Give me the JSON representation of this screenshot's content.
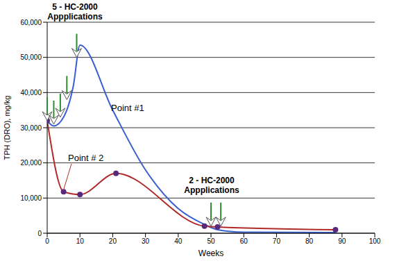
{
  "chart_data": {
    "type": "line",
    "x_label": "Weeks",
    "y_label": "TPH (DRO), mg/kg",
    "xlim": [
      0,
      100
    ],
    "xticks": [
      0,
      10,
      20,
      30,
      40,
      50,
      60,
      70,
      80,
      90,
      100
    ],
    "ylim": [
      0,
      60000
    ],
    "yticks": [
      0,
      {
        "value": 10000,
        "label": "10,000"
      },
      {
        "value": 20000,
        "label": "20,000"
      },
      {
        "value": 30000,
        "label": "30,000"
      },
      {
        "value": 40000,
        "label": "40,000"
      },
      {
        "value": 50000,
        "label": "50,000"
      },
      {
        "value": 60000,
        "label": "60,000"
      }
    ],
    "grid": true,
    "series": [
      {
        "name": "Point #1",
        "color": "#3a5fd0",
        "marker": "none",
        "line_style": "solid",
        "x": [
          0,
          2,
          5,
          8,
          10,
          20,
          30,
          40,
          48,
          52,
          60,
          88
        ],
        "values": [
          32000,
          30500,
          33000,
          42000,
          53500,
          35000,
          18000,
          7000,
          2500,
          1000,
          300,
          200
        ]
      },
      {
        "name": "Point # 2",
        "color": "#b02a2a",
        "marker": "circle",
        "line_style": "solid",
        "x": [
          0,
          5,
          10,
          21,
          48,
          52,
          88
        ],
        "values": [
          32000,
          11800,
          11000,
          17000,
          2000,
          1800,
          1000
        ]
      }
    ],
    "annotations": [
      {
        "text": [
          "5 - HC-2000",
          "Appplications"
        ],
        "arrows": [
          {
            "x": 0,
            "y": 32000
          },
          {
            "x": 2,
            "y": 31000
          },
          {
            "x": 4,
            "y": 33000
          },
          {
            "x": 6,
            "y": 38000
          },
          {
            "x": 9,
            "y": 50000
          }
        ]
      },
      {
        "text": [
          "2 - HC-2000",
          "Appplications"
        ],
        "arrows": [
          {
            "x": 50,
            "y": 2000
          },
          {
            "x": 53,
            "y": 2000
          }
        ]
      }
    ]
  }
}
